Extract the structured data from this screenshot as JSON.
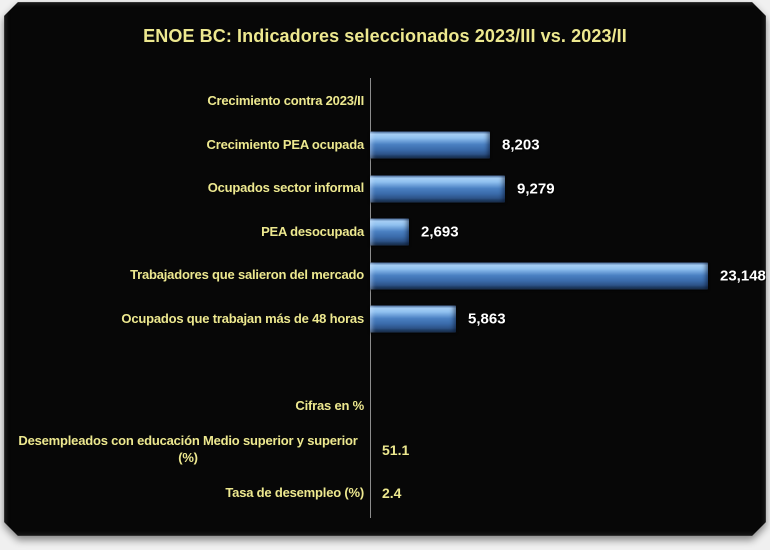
{
  "colors": {
    "page_background": "#F0F0F0",
    "panel_background": "#070707",
    "title_text": "#EDE88F",
    "label_text": "#EDE88F",
    "count_value_text": "#FFFFFF",
    "pct_value_text": "#EDE88F",
    "axis_line": "#8C8C8C",
    "bar_highlight": "#A6CEF5",
    "bar_main": "#4A80C2",
    "bar_shadow": "#142C4C"
  },
  "chart_data": {
    "type": "bar",
    "orientation": "horizontal",
    "title": "ENOE BC: Indicadores seleccionados 2023/III vs. 2023/II",
    "xlabel": "",
    "ylabel": "",
    "xlim": [
      0,
      25000
    ],
    "grid": false,
    "legend": false,
    "rows": [
      {
        "label": "Crecimiento contra 2023/II",
        "value": null,
        "display": "",
        "style": "none"
      },
      {
        "label": "Crecimiento PEA ocupada",
        "value": 8203,
        "display": "8,203",
        "style": "count"
      },
      {
        "label": "Ocupados sector informal",
        "value": 9279,
        "display": "9,279",
        "style": "count"
      },
      {
        "label": "PEA desocupada",
        "value": 2693,
        "display": "2,693",
        "style": "count"
      },
      {
        "label": "Trabajadores que salieron del mercado",
        "value": 23148,
        "display": "23,148",
        "style": "count"
      },
      {
        "label": "Ocupados que trabajan más de 48 horas",
        "value": 5863,
        "display": "5,863",
        "style": "count"
      },
      {
        "label": "",
        "value": null,
        "display": "",
        "style": "none"
      },
      {
        "label": "Cifras en %",
        "value": null,
        "display": "",
        "style": "none"
      },
      {
        "label": "Desempleados con educación Medio superior y superior (%)",
        "value": 51.1,
        "display": "51.1",
        "style": "pct"
      },
      {
        "label": "Tasa de desempleo (%)",
        "value": 2.4,
        "display": "2.4",
        "style": "pct"
      }
    ]
  }
}
